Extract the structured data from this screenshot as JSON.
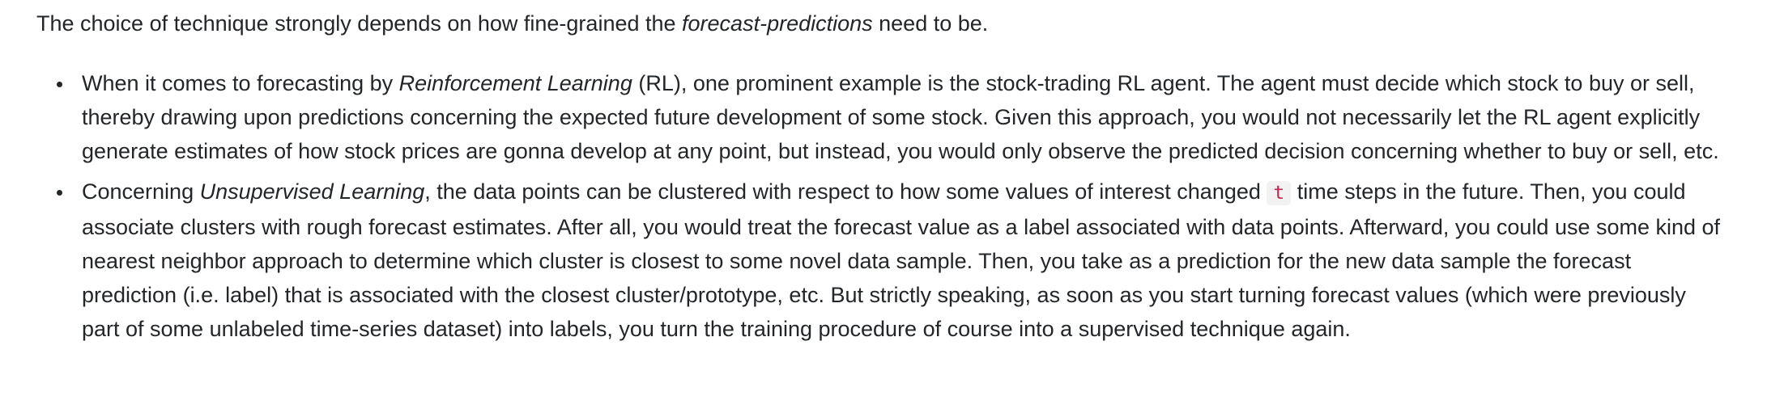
{
  "intro": {
    "before": "The choice of technique strongly depends on how fine-grained the ",
    "emph": "forecast-predictions",
    "after": " need to be."
  },
  "bullets": [
    {
      "before": "When it comes to forecasting by ",
      "emph": "Reinforcement Learning",
      "after": " (RL), one prominent example is the stock-trading RL agent. The agent must decide which stock to buy or sell, thereby drawing upon predictions concerning the expected future development of some stock. Given this approach, you would not necessarily let the RL agent explicitly generate estimates of how stock prices are gonna develop at any point, but instead, you would only observe the predicted decision concerning whether to buy or sell, etc."
    },
    {
      "before": "Concerning ",
      "emph": "Unsupervised Learning",
      "middle": ", the data points can be clustered with respect to how some values of interest changed ",
      "code": "t",
      "after": " time steps in the future. Then, you could associate clusters with rough forecast estimates. After all, you would treat the forecast value as a label associated with data points. Afterward, you could use some kind of nearest neighbor approach to determine which cluster is closest to some novel data sample. Then, you take as a prediction for the new data sample the forecast prediction (i.e. label) that is associated with the closest cluster/prototype, etc. But strictly speaking, as soon as you start turning forecast values (which were previously part of some unlabeled time-series dataset) into labels, you turn the training procedure of course into a supervised technique again."
    }
  ],
  "colors": {
    "text": "#232629",
    "code_text": "#c7254e",
    "code_background": "#f2f2f2"
  }
}
